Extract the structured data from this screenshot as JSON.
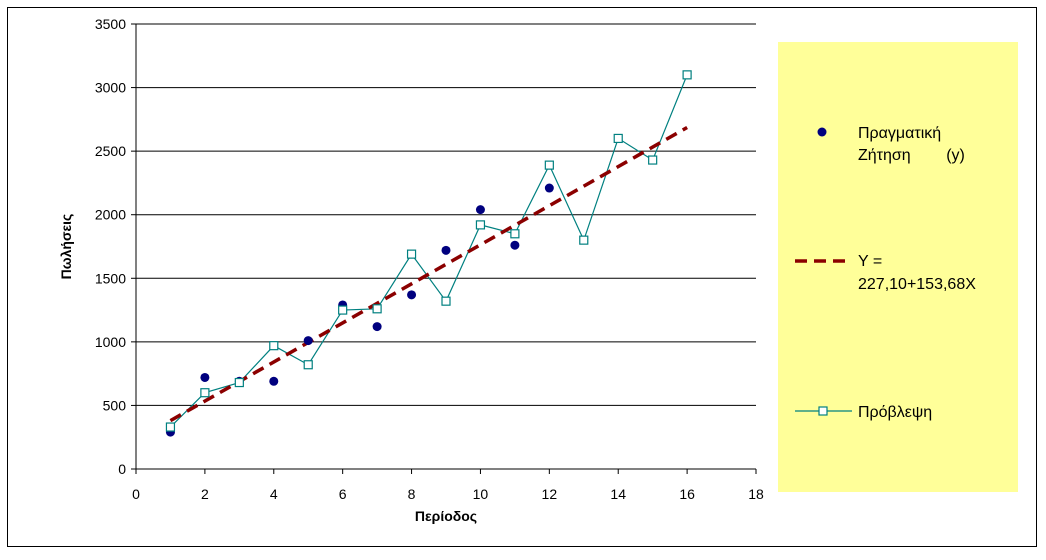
{
  "chart_data": {
    "type": "scatter",
    "title": "",
    "xlabel": "Περίοδος",
    "ylabel": "Πωλήσεις",
    "xlim": [
      0,
      18
    ],
    "ylim": [
      0,
      3500
    ],
    "x_ticks": [
      0,
      2,
      4,
      6,
      8,
      10,
      12,
      14,
      16,
      18
    ],
    "y_ticks": [
      0,
      500,
      1000,
      1500,
      2000,
      2500,
      3000,
      3500
    ],
    "grid": "horizontal",
    "legend_position": "right",
    "series": [
      {
        "name": "Πραγματική Ζήτηση (y)",
        "kind": "markers",
        "marker": "circle",
        "color": "#00007F",
        "x": [
          1,
          2,
          3,
          4,
          5,
          6,
          7,
          8,
          9,
          10,
          11,
          12
        ],
        "y": [
          290,
          720,
          690,
          690,
          1010,
          1290,
          1120,
          1370,
          1720,
          2040,
          1760,
          2210
        ]
      },
      {
        "name": "Y = 227,10+153,68X",
        "kind": "dashed-line",
        "color": "#8B0000",
        "x": [
          1,
          16
        ],
        "y": [
          380.78,
          2685.98
        ]
      },
      {
        "name": "Πρόβλεψη",
        "kind": "line-square",
        "color": "#008080",
        "x": [
          1,
          2,
          3,
          4,
          5,
          6,
          7,
          8,
          9,
          10,
          11,
          12,
          13,
          14,
          15,
          16
        ],
        "y": [
          330,
          600,
          680,
          970,
          820,
          1250,
          1260,
          1690,
          1320,
          1920,
          1850,
          2390,
          1800,
          2600,
          2430,
          3100
        ]
      }
    ]
  },
  "legend": {
    "items": [
      {
        "label_lines": [
          "Πραγματική",
          "Ζήτηση        (y)"
        ]
      },
      {
        "label_lines": [
          "Y =",
          "227,10+153,68X"
        ]
      },
      {
        "label_lines": [
          "Πρόβλεψη"
        ]
      }
    ]
  },
  "colors": {
    "legend_bg": "#FFFF99",
    "actual": "#00007F",
    "trend": "#8B0000",
    "forecast": "#008080"
  }
}
